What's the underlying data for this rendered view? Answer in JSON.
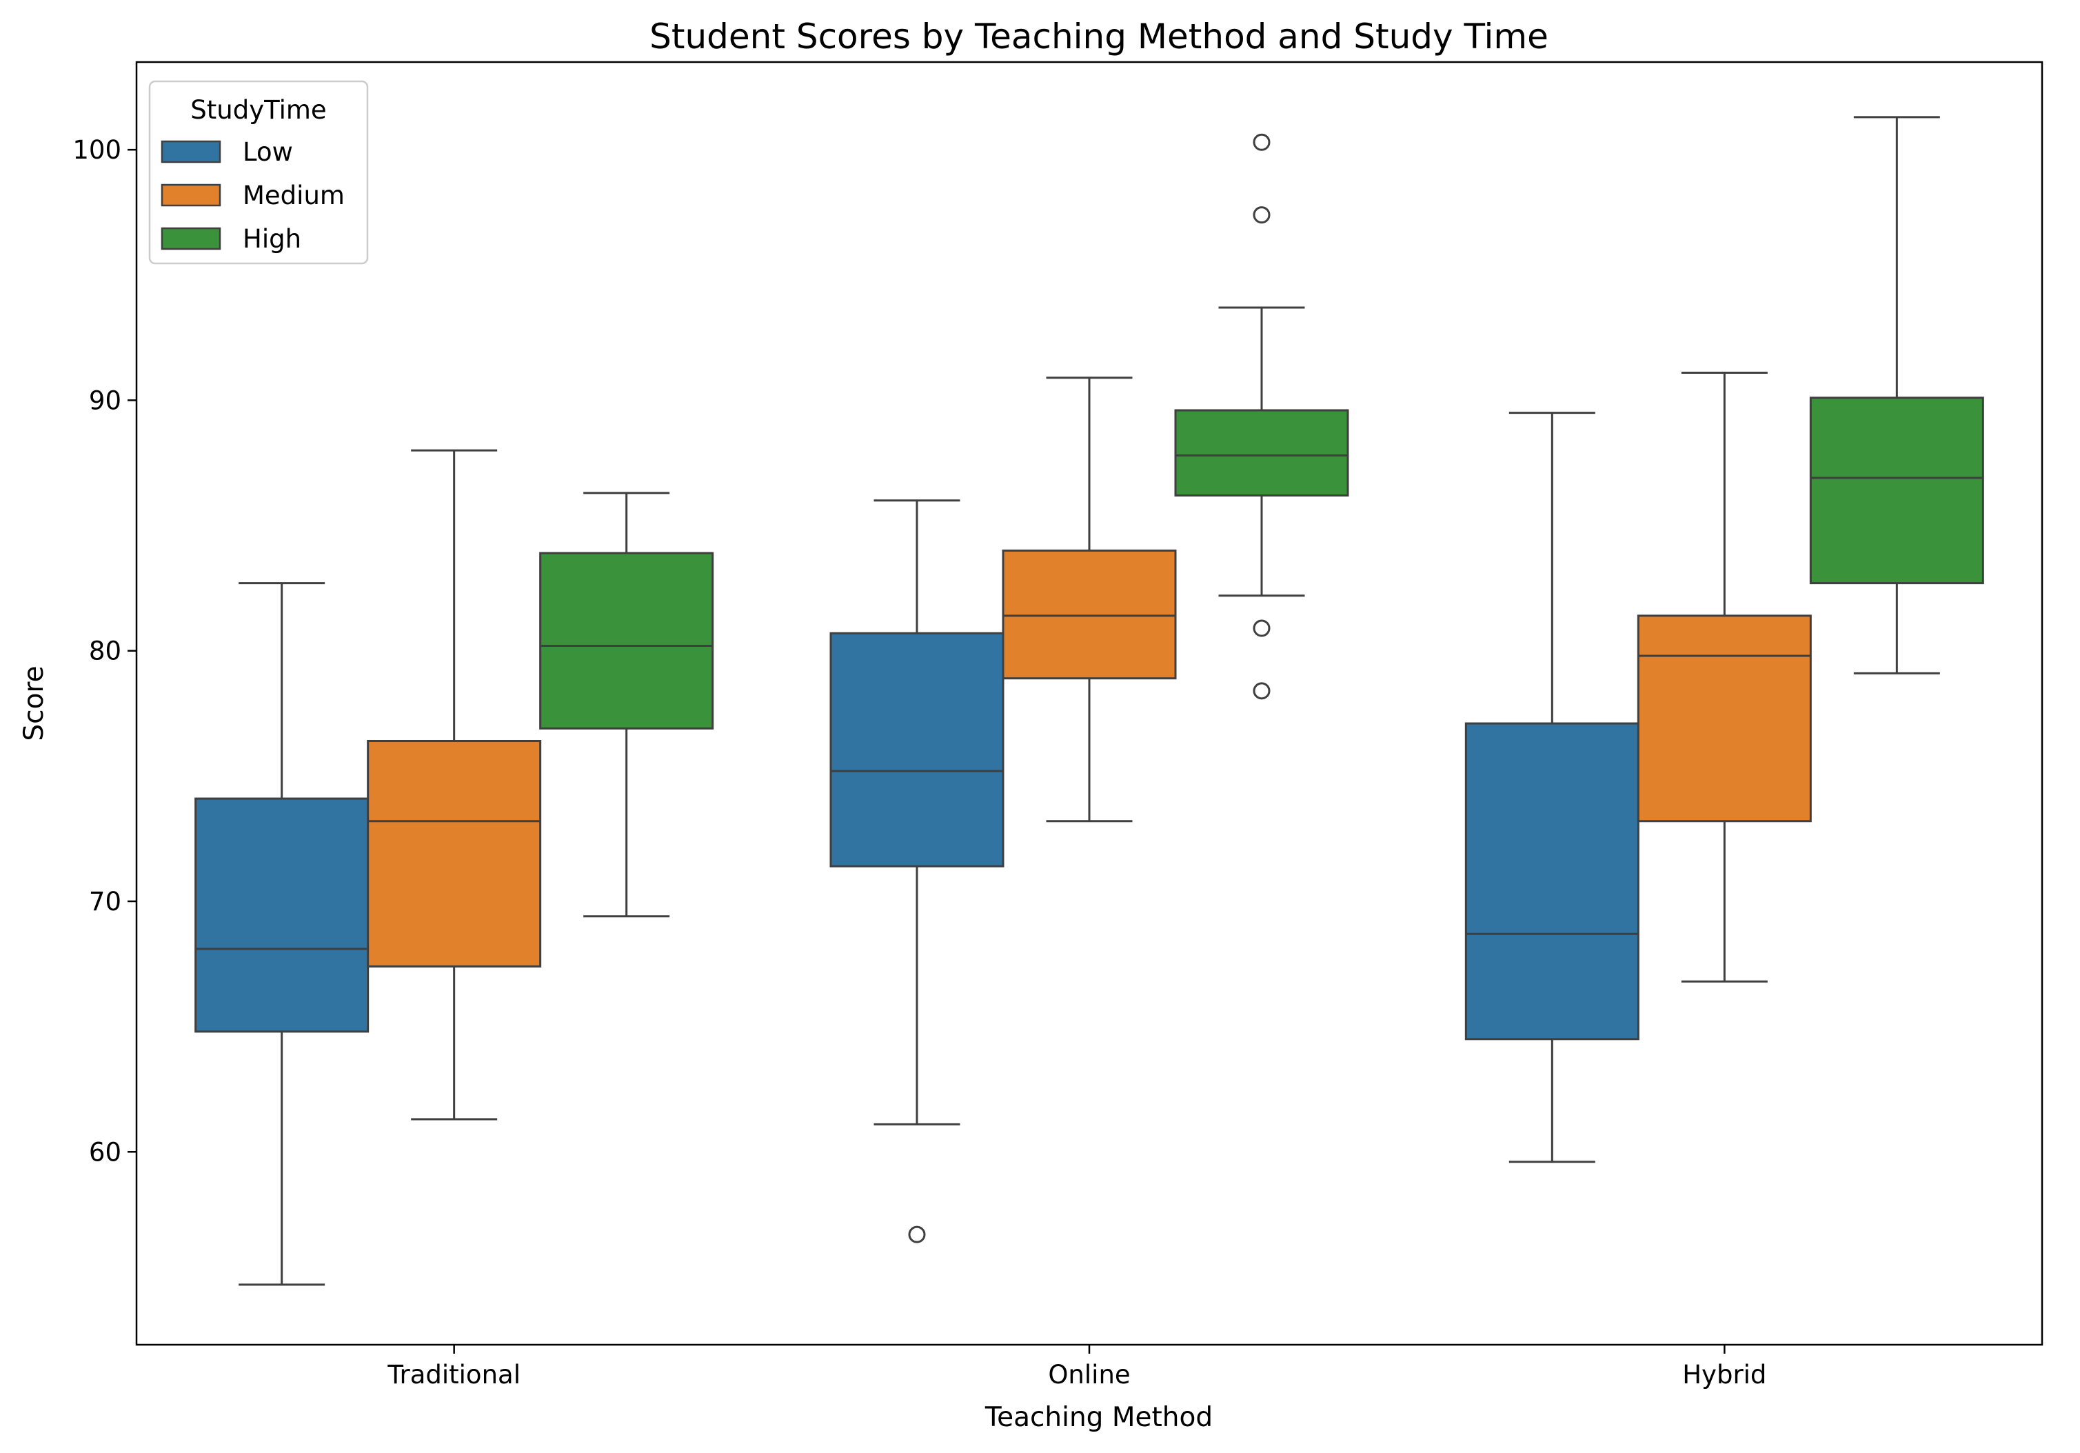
{
  "chart_data": {
    "type": "box",
    "title": "Student Scores by Teaching Method and Study Time",
    "xlabel": "Teaching Method",
    "ylabel": "Score",
    "ylim": [
      52.3,
      103.5
    ],
    "yticks": [
      60,
      70,
      80,
      90,
      100
    ],
    "categories": [
      "Traditional",
      "Online",
      "Hybrid"
    ],
    "grid": false,
    "legend": {
      "title": "StudyTime",
      "position": "top-left"
    },
    "series": [
      {
        "name": "Low",
        "color": "#3274a1",
        "boxes": [
          {
            "whisker_low": 54.7,
            "q1": 64.8,
            "median": 68.1,
            "q3": 74.1,
            "whisker_high": 82.7,
            "outliers": []
          },
          {
            "whisker_low": 61.1,
            "q1": 71.4,
            "median": 75.2,
            "q3": 80.7,
            "whisker_high": 86.0,
            "outliers": [
              56.7
            ]
          },
          {
            "whisker_low": 59.6,
            "q1": 64.5,
            "median": 68.7,
            "q3": 77.1,
            "whisker_high": 89.5,
            "outliers": []
          }
        ]
      },
      {
        "name": "Medium",
        "color": "#e1812c",
        "boxes": [
          {
            "whisker_low": 61.3,
            "q1": 67.4,
            "median": 73.2,
            "q3": 76.4,
            "whisker_high": 88.0,
            "outliers": []
          },
          {
            "whisker_low": 73.2,
            "q1": 78.9,
            "median": 81.4,
            "q3": 84.0,
            "whisker_high": 90.9,
            "outliers": []
          },
          {
            "whisker_low": 66.8,
            "q1": 73.2,
            "median": 79.8,
            "q3": 81.4,
            "whisker_high": 91.1,
            "outliers": []
          }
        ]
      },
      {
        "name": "High",
        "color": "#3a923a",
        "boxes": [
          {
            "whisker_low": 69.4,
            "q1": 76.9,
            "median": 80.2,
            "q3": 83.9,
            "whisker_high": 86.3,
            "outliers": []
          },
          {
            "whisker_low": 82.2,
            "q1": 86.2,
            "median": 87.8,
            "q3": 89.6,
            "whisker_high": 93.7,
            "outliers": [
              100.3,
              97.4,
              80.9,
              78.4
            ]
          },
          {
            "whisker_low": 79.1,
            "q1": 82.7,
            "median": 86.9,
            "q3": 90.1,
            "whisker_high": 101.3,
            "outliers": []
          }
        ]
      }
    ]
  }
}
